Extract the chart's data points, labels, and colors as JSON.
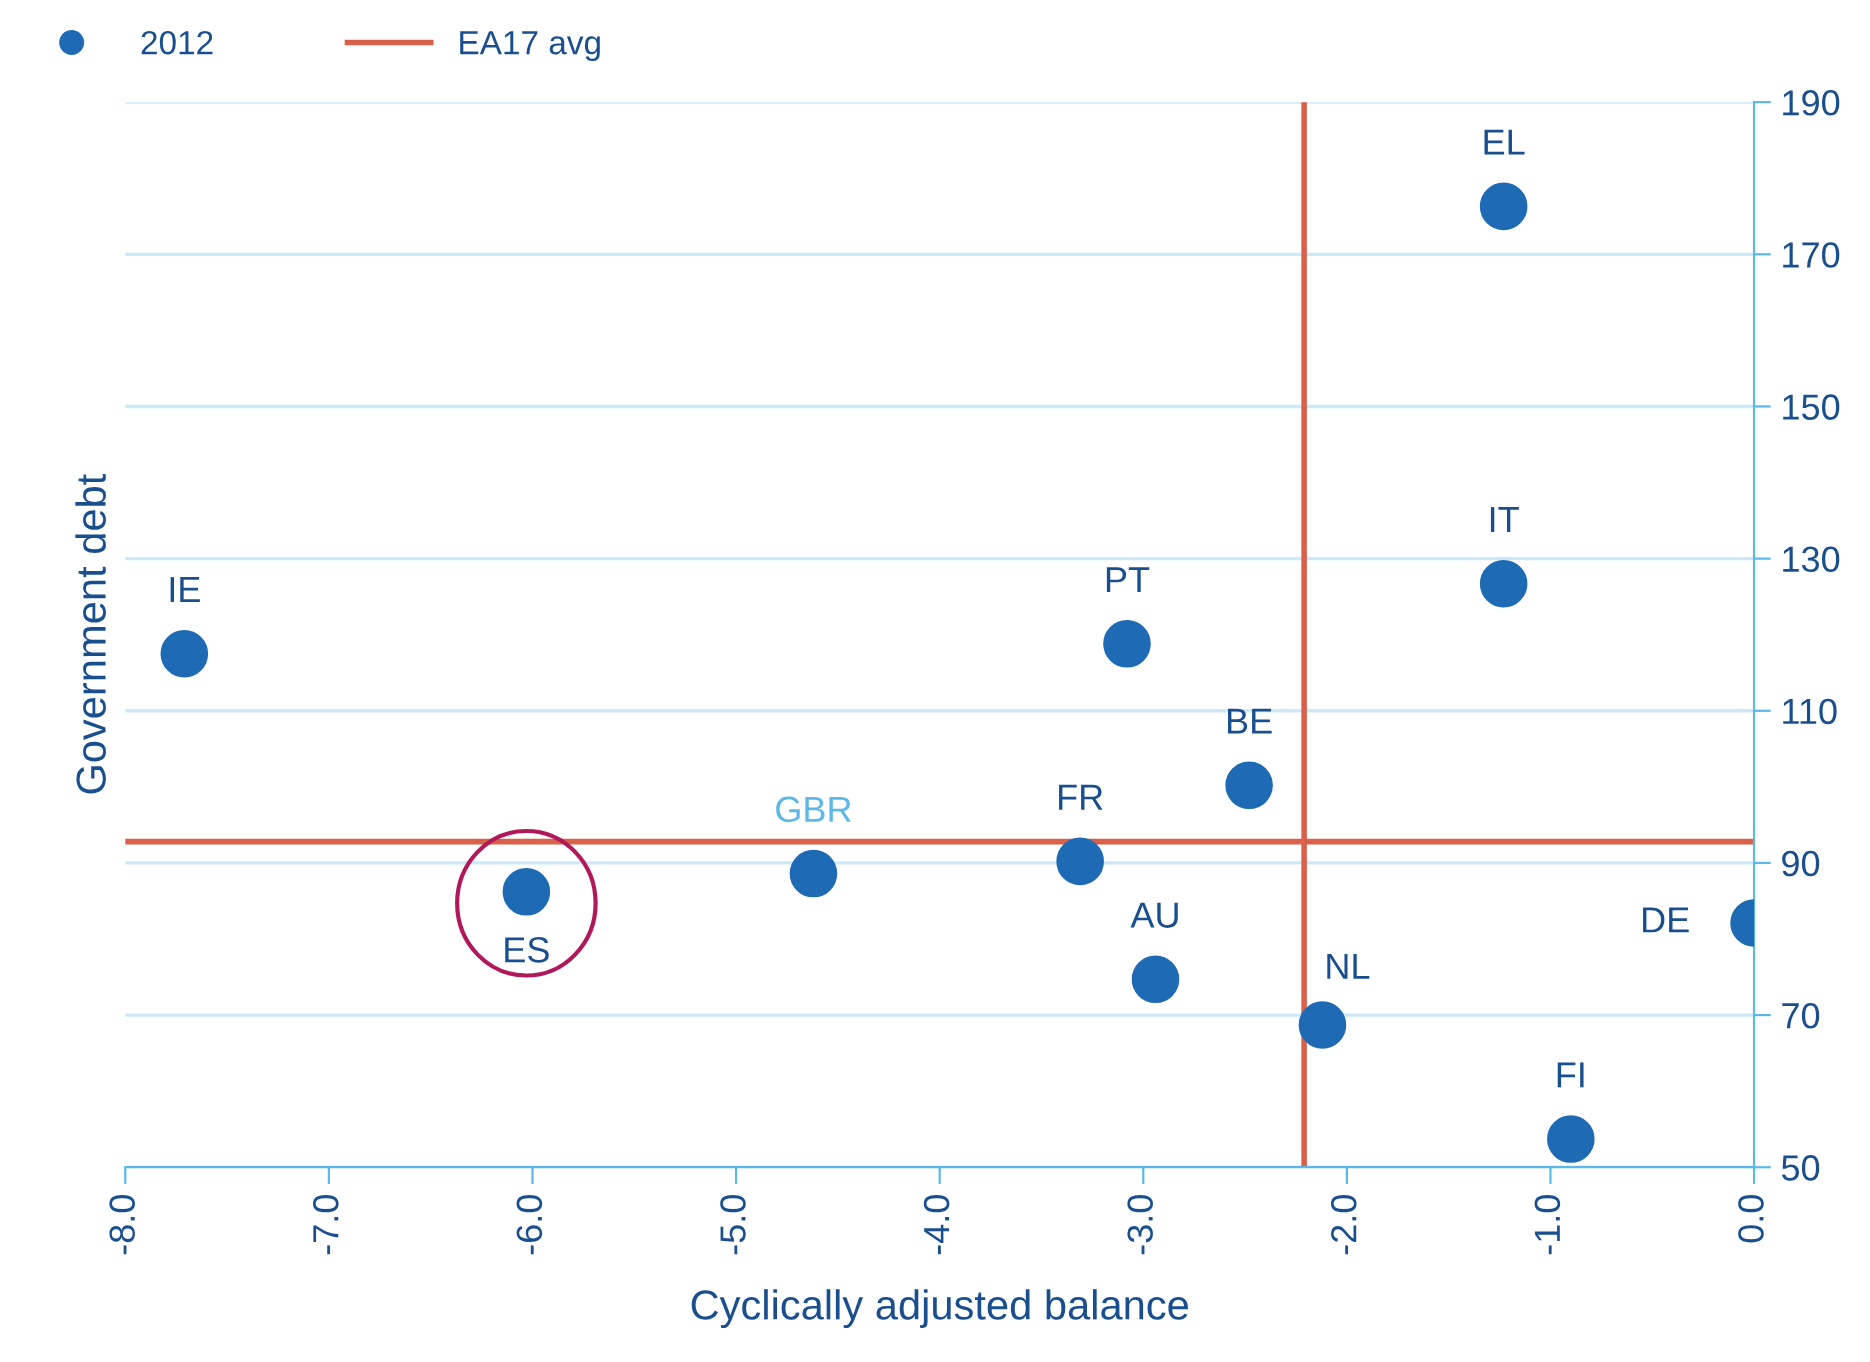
{
  "chart_data": {
    "type": "scatter",
    "xlabel": "Cyclically adjusted balance",
    "ylabel": "Government debt",
    "series": [
      {
        "name": "2012",
        "color": "#1f6ab5",
        "x": [
          -7.71,
          -6.03,
          -4.62,
          -3.31,
          -3.08,
          -2.94,
          -2.48,
          -2.12,
          -1.23,
          -1.23,
          -0.9,
          0.0
        ],
        "values": [
          117.5,
          86.2,
          88.6,
          90.2,
          118.8,
          74.7,
          100.2,
          68.7,
          176.3,
          126.7,
          53.7,
          82.1
        ]
      }
    ],
    "ref_lines": [
      {
        "axis": "x",
        "value": -2.21,
        "label": "EA17 avg",
        "color": "#d9604a"
      },
      {
        "axis": "y",
        "value": 92.8,
        "color": "#d9604a"
      }
    ],
    "annotations": [
      {
        "text": "IE",
        "x": -7.71,
        "y": 117.5
      },
      {
        "text": "ES",
        "x": -6.03,
        "y": 86.2
      },
      {
        "text": "GBR",
        "x": -4.62,
        "y": 88.6
      },
      {
        "text": "FR",
        "x": -3.31,
        "y": 90.2
      },
      {
        "text": "PT",
        "x": -3.08,
        "y": 118.8
      },
      {
        "text": "AU",
        "x": -2.94,
        "y": 74.7
      },
      {
        "text": "BE",
        "x": -2.48,
        "y": 100.2
      },
      {
        "text": "NL",
        "x": -2.12,
        "y": 68.7
      },
      {
        "text": "EL",
        "x": -1.23,
        "y": 176.3
      },
      {
        "text": "IT",
        "x": -1.23,
        "y": 126.7
      },
      {
        "text": "FI",
        "x": -0.9,
        "y": 53.7
      },
      {
        "text": "DE",
        "x": 0.0,
        "y": 82.1
      }
    ],
    "xlim": [
      -8.0,
      0.0
    ],
    "xticks": [
      {
        "value": -8,
        "label": "-8.0"
      },
      {
        "value": -7,
        "label": "-7.0"
      },
      {
        "value": -6,
        "label": "-6.0"
      },
      {
        "value": -5,
        "label": "-5.0"
      },
      {
        "value": -4,
        "label": "-4.0"
      },
      {
        "value": -3,
        "label": "-3.0"
      },
      {
        "value": -2,
        "label": "-2.0"
      },
      {
        "value": -1,
        "label": "-1.0"
      },
      {
        "value": 0,
        "label": "0.0"
      }
    ],
    "ylim": [
      50,
      190
    ],
    "yticks": [
      50,
      70,
      90,
      110,
      130,
      150,
      170,
      190
    ],
    "grid": "y",
    "legend": "top left",
    "marker": "circle"
  }
}
